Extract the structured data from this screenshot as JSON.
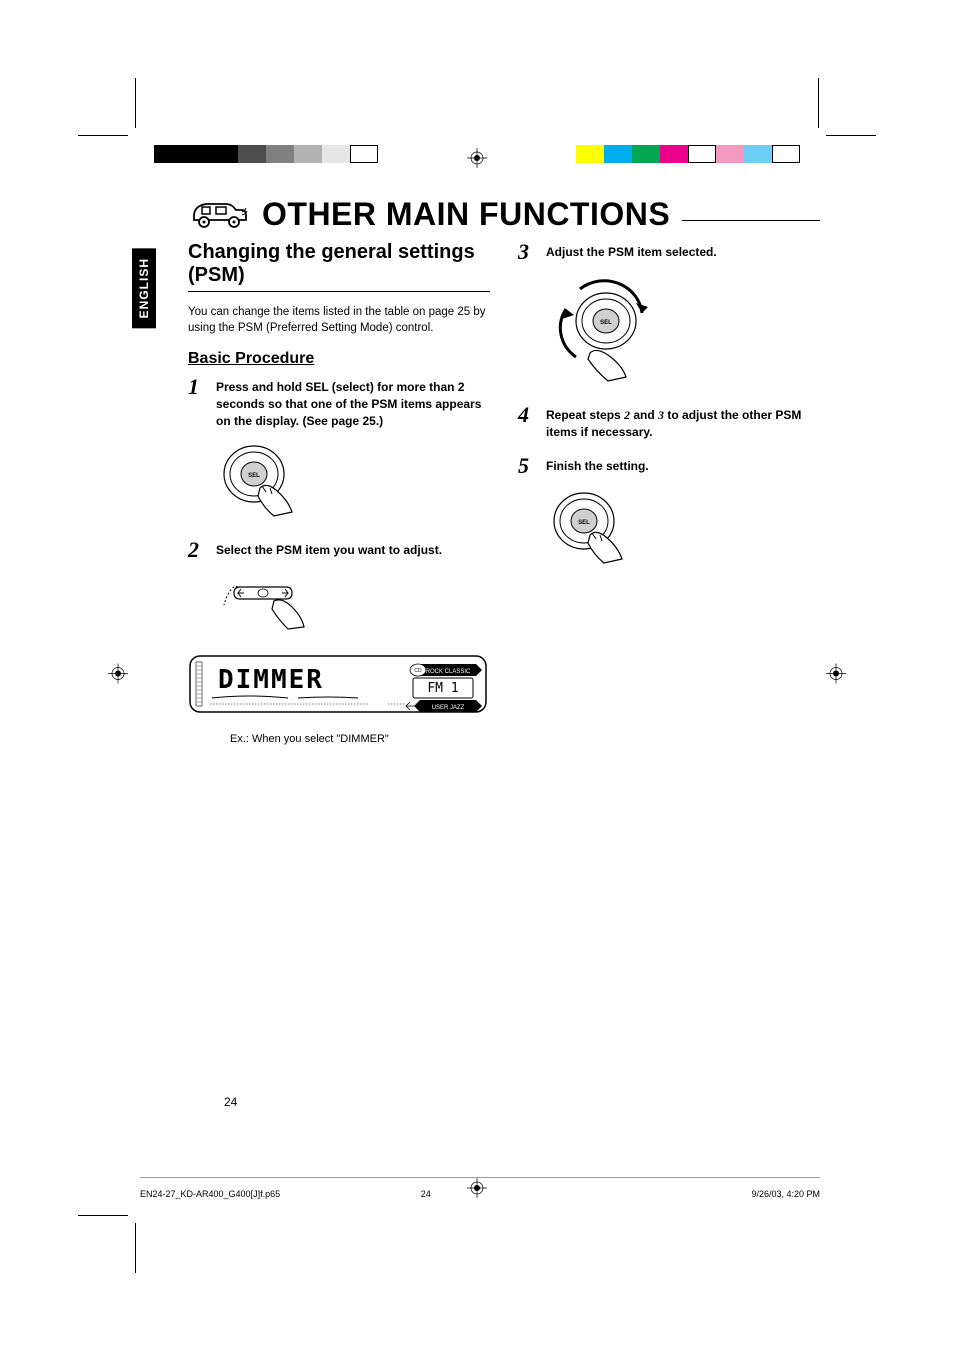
{
  "colors": {
    "bars_left": [
      "#000000",
      "#000000",
      "#000000",
      "#4d4d4d",
      "#808080",
      "#b3b3b3",
      "#e6e6e6",
      "#ffffff"
    ],
    "bars_right": [
      "#ffff00",
      "#00aeef",
      "#00a651",
      "#ec008c",
      "#ffffff",
      "#f49ac1",
      "#6dcff6",
      "#ffffff"
    ]
  },
  "language_tab": "ENGLISH",
  "main_title": "OTHER MAIN FUNCTIONS",
  "section_title_line1": "Changing the general settings",
  "section_title_line2": "(PSM)",
  "intro_text": "You can change the items listed in the table on page 25 by using the PSM (Preferred Setting Mode) control.",
  "sub_heading": "Basic Procedure",
  "steps": {
    "s1": {
      "num": "1",
      "text": "Press and hold SEL (select) for more than 2 seconds so that one of the PSM items appears on the display. (See page 25.)"
    },
    "s2": {
      "num": "2",
      "text": "Select the PSM item you want to adjust."
    },
    "s3": {
      "num": "3",
      "text": "Adjust the PSM item selected."
    },
    "s4": {
      "num": "4",
      "text_a": "Repeat steps ",
      "num_a": "2",
      "text_b": " and ",
      "num_b": "3",
      "text_c": " to adjust the other PSM items if necessary."
    },
    "s5": {
      "num": "5",
      "text": "Finish the setting."
    }
  },
  "display_text": {
    "main": "DIMMER",
    "sub": "FM 1",
    "tags": [
      "CD",
      "ROCK CLASSIC",
      "USER",
      "JAZZ"
    ]
  },
  "caption": "Ex.: When you select \"DIMMER\"",
  "page_number": "24",
  "footer": {
    "file": "EN24-27_KD-AR400_G400[J]f.p65",
    "page": "24",
    "date": "9/26/03, 4:20 PM"
  }
}
